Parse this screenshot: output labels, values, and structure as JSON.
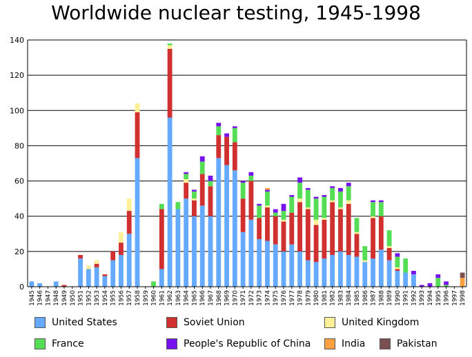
{
  "chart_data": {
    "type": "bar",
    "stacked": true,
    "title": "Worldwide nuclear testing, 1945-1998",
    "xlabel": "",
    "ylabel": "",
    "ylim": [
      0,
      140
    ],
    "yticks": [
      0,
      20,
      40,
      60,
      80,
      100,
      120,
      140
    ],
    "grid": "horizontal",
    "legend_position": "bottom",
    "categories": [
      "1945",
      "1946",
      "1947",
      "1948",
      "1949",
      "1950",
      "1951",
      "1952",
      "1953",
      "1954",
      "1955",
      "1956",
      "1957",
      "1958",
      "1959",
      "1960",
      "1961",
      "1962",
      "1963",
      "1964",
      "1965",
      "1966",
      "1967",
      "1968",
      "1969",
      "1970",
      "1971",
      "1972",
      "1973",
      "1974",
      "1975",
      "1976",
      "1977",
      "1978",
      "1979",
      "1980",
      "1981",
      "1982",
      "1983",
      "1984",
      "1985",
      "1986",
      "1987",
      "1988",
      "1989",
      "1990",
      "1991",
      "1992",
      "1993",
      "1994",
      "1995",
      "1996",
      "1997",
      "1998"
    ],
    "series": [
      {
        "name": "United States",
        "color": "#66aaff",
        "values": [
          3,
          2,
          0,
          3,
          0,
          0,
          16,
          10,
          11,
          6,
          15,
          18,
          30,
          73,
          0,
          0,
          10,
          96,
          44,
          50,
          40,
          46,
          40,
          73,
          69,
          66,
          31,
          38,
          27,
          26,
          24,
          20,
          24,
          20,
          15,
          14,
          16,
          18,
          20,
          18,
          17,
          14,
          16,
          21,
          15,
          9,
          8,
          7,
          0,
          0,
          0,
          0,
          0,
          0
        ]
      },
      {
        "name": "Soviet Union",
        "color": "#d03030",
        "values": [
          0,
          0,
          0,
          0,
          1,
          0,
          2,
          0,
          2,
          1,
          5,
          7,
          13,
          26,
          0,
          0,
          34,
          39,
          0,
          9,
          9,
          18,
          17,
          13,
          16,
          16,
          19,
          22,
          12,
          19,
          16,
          17,
          18,
          28,
          29,
          21,
          22,
          30,
          24,
          29,
          13,
          0,
          23,
          19,
          7,
          1,
          0,
          0,
          0,
          0,
          0,
          0,
          0,
          0
        ]
      },
      {
        "name": "United Kingdom",
        "color": "#ffef99",
        "values": [
          0,
          0,
          0,
          0,
          0,
          0,
          0,
          2,
          2,
          0,
          0,
          6,
          7,
          5,
          0,
          0,
          0,
          2,
          0,
          2,
          1,
          0,
          0,
          0,
          0,
          0,
          0,
          0,
          0,
          1,
          0,
          1,
          0,
          2,
          1,
          3,
          1,
          1,
          1,
          2,
          1,
          1,
          1,
          0,
          1,
          1,
          0,
          0,
          0,
          0,
          0,
          0,
          0,
          0
        ]
      },
      {
        "name": "France",
        "color": "#55dd55",
        "values": [
          0,
          0,
          0,
          0,
          0,
          0,
          0,
          0,
          0,
          0,
          0,
          0,
          0,
          0,
          0,
          3,
          3,
          1,
          4,
          3,
          4,
          7,
          3,
          5,
          0,
          8,
          9,
          3,
          7,
          8,
          2,
          5,
          9,
          9,
          10,
          12,
          12,
          7,
          9,
          8,
          8,
          8,
          8,
          8,
          9,
          6,
          8,
          0,
          0,
          0,
          5,
          1,
          0,
          0
        ]
      },
      {
        "name": "People's Republic of China",
        "color": "#7711ee",
        "values": [
          0,
          0,
          0,
          0,
          0,
          0,
          0,
          0,
          0,
          0,
          0,
          0,
          0,
          0,
          0,
          0,
          0,
          0,
          0,
          1,
          1,
          3,
          3,
          2,
          2,
          1,
          1,
          2,
          1,
          1,
          2,
          4,
          1,
          3,
          1,
          1,
          1,
          1,
          2,
          2,
          0,
          0,
          1,
          1,
          0,
          2,
          0,
          2,
          1,
          2,
          2,
          2,
          0,
          0
        ]
      },
      {
        "name": "India",
        "color": "#ffa040",
        "values": [
          0,
          0,
          0,
          0,
          0,
          0,
          0,
          0,
          0,
          0,
          0,
          0,
          0,
          0,
          0,
          0,
          0,
          0,
          0,
          0,
          0,
          0,
          0,
          0,
          0,
          0,
          0,
          0,
          0,
          1,
          0,
          0,
          0,
          0,
          0,
          0,
          0,
          0,
          0,
          0,
          0,
          0,
          0,
          0,
          0,
          0,
          0,
          0,
          0,
          0,
          0,
          0,
          0,
          5
        ]
      },
      {
        "name": "Pakistan",
        "color": "#7a5050",
        "values": [
          0,
          0,
          0,
          0,
          0,
          0,
          0,
          0,
          0,
          0,
          0,
          0,
          0,
          0,
          0,
          0,
          0,
          0,
          0,
          0,
          0,
          0,
          0,
          0,
          0,
          0,
          0,
          0,
          0,
          0,
          0,
          0,
          0,
          0,
          0,
          0,
          0,
          0,
          0,
          0,
          0,
          0,
          0,
          0,
          0,
          0,
          0,
          0,
          0,
          0,
          0,
          0,
          0,
          3
        ]
      }
    ]
  }
}
